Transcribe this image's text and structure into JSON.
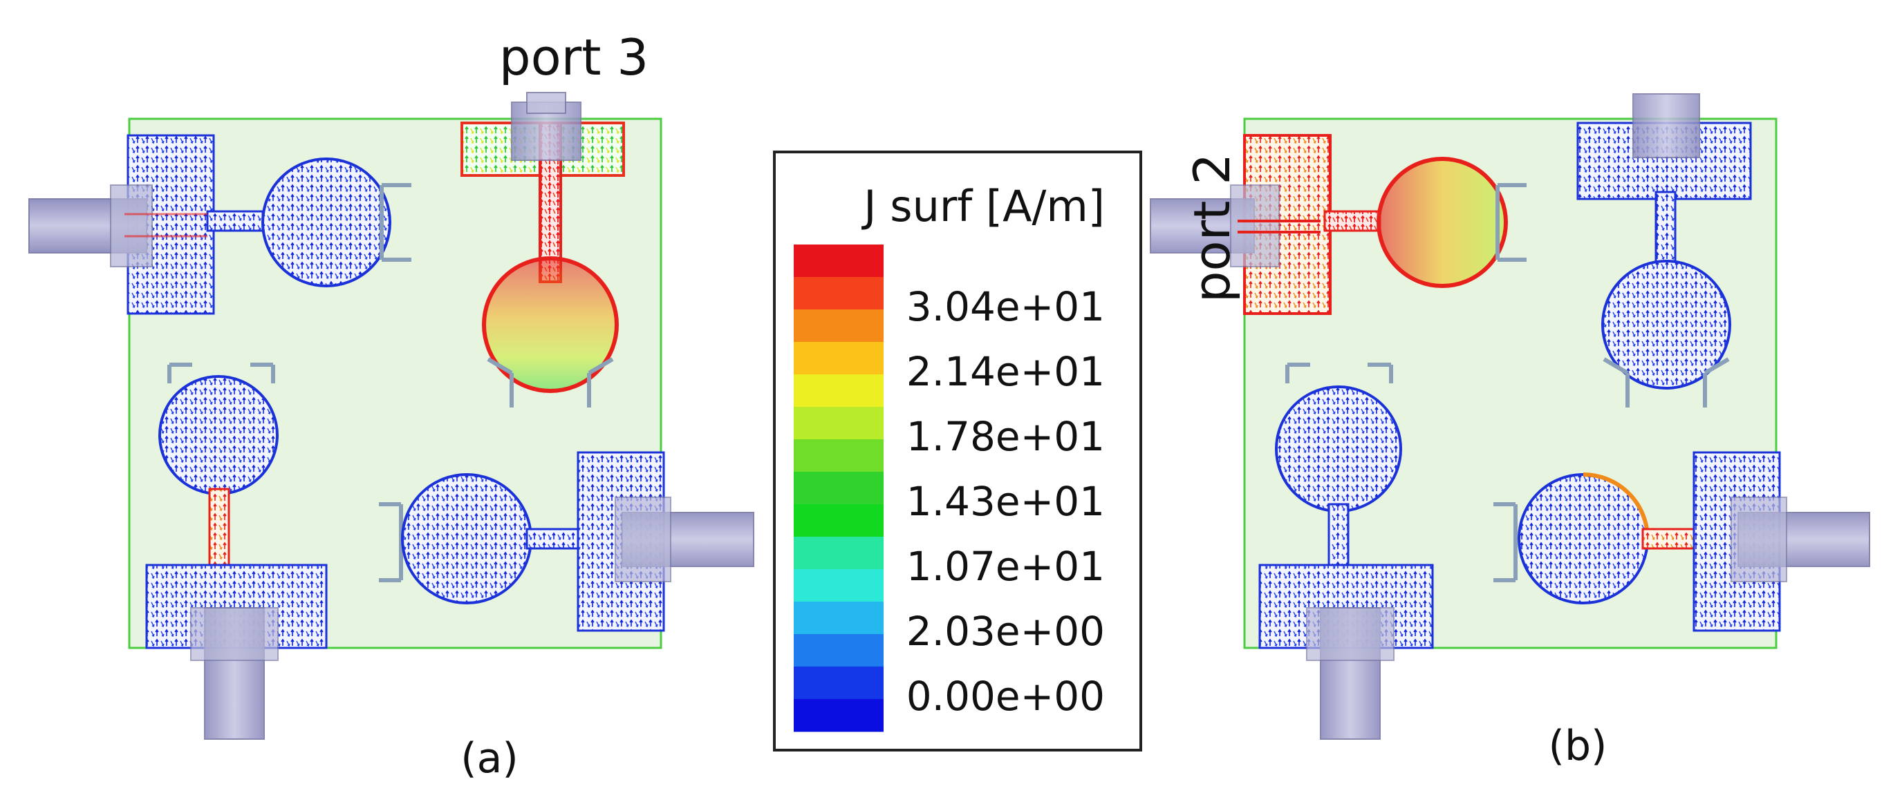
{
  "panels": [
    {
      "id": "a",
      "caption": "(a)",
      "port_label": "port 3",
      "highlight_color": "#ff2a1a",
      "resonators": [
        {
          "id": "top-left",
          "intensity": "low"
        },
        {
          "id": "top-right",
          "intensity": "high"
        },
        {
          "id": "bottom-left",
          "intensity": "low"
        },
        {
          "id": "bottom-right",
          "intensity": "low"
        }
      ]
    },
    {
      "id": "b",
      "caption": "(b)",
      "port_label": "port 2",
      "highlight_color": "#ff2a1a",
      "resonators": [
        {
          "id": "top-left",
          "intensity": "high"
        },
        {
          "id": "top-right",
          "intensity": "low"
        },
        {
          "id": "bottom-left",
          "intensity": "low"
        },
        {
          "id": "bottom-right",
          "intensity": "low"
        }
      ]
    }
  ],
  "colorbar": {
    "title": "J surf [A/m]",
    "tick_labels": [
      "3.04e+01",
      "2.14e+01",
      "1.78e+01",
      "1.43e+01",
      "1.07e+01",
      "2.03e+00",
      "0.00e+00"
    ],
    "colors": [
      "#e8141c",
      "#f3421c",
      "#f68a18",
      "#fbc21a",
      "#ecef22",
      "#b8ec2a",
      "#6fdd2a",
      "#30d22e",
      "#12d820",
      "#26e6a0",
      "#2ce8d6",
      "#25b8ee",
      "#1f7cee",
      "#1438e8",
      "#0a0ee0"
    ]
  },
  "substrate_color": "#e6f4e0",
  "substrate_border_color": "#4ccc40",
  "port_color": "#a4a4cc"
}
